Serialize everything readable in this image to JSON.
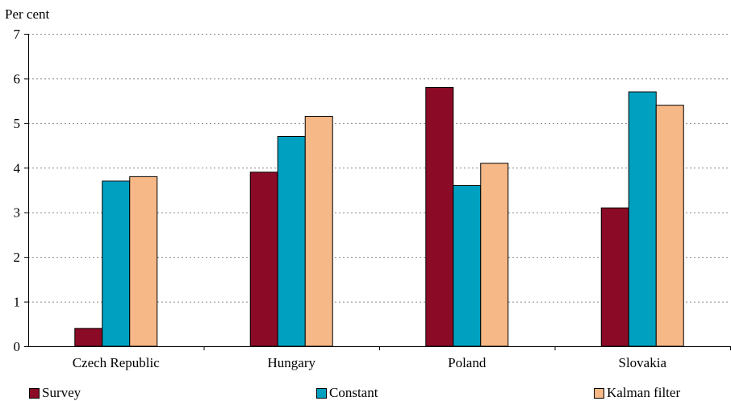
{
  "chart_data": {
    "type": "bar",
    "title": "",
    "ylabel": "Per cent",
    "xlabel": "",
    "ylim": [
      0,
      7
    ],
    "yticks": [
      0,
      1,
      2,
      3,
      4,
      5,
      6,
      7
    ],
    "grid": "horizontal dashed",
    "legend_position": "bottom",
    "categories": [
      "Czech Republic",
      "Hungary",
      "Poland",
      "Slovakia"
    ],
    "series": [
      {
        "name": "Survey",
        "color": "#8b0a25",
        "values": [
          0.4,
          3.9,
          5.8,
          3.1
        ]
      },
      {
        "name": "Constant",
        "color": "#00a0c0",
        "values": [
          3.7,
          4.7,
          3.6,
          5.7
        ]
      },
      {
        "name": "Kalman filter",
        "color": "#f6b887",
        "values": [
          3.8,
          5.15,
          4.1,
          5.4
        ]
      }
    ]
  }
}
